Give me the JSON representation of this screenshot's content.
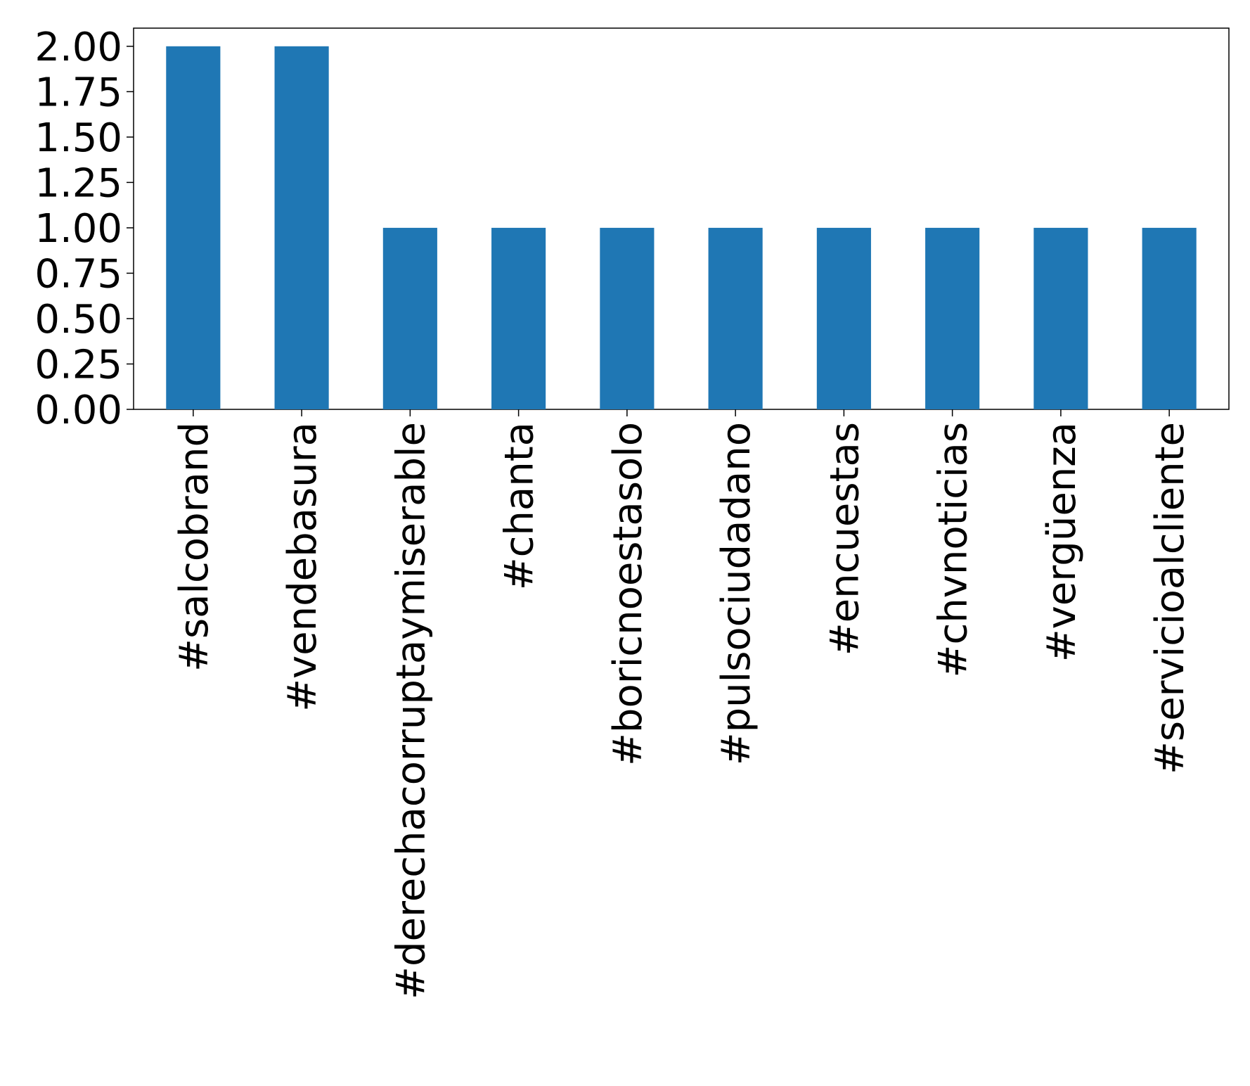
{
  "chart_data": {
    "type": "bar",
    "title": "",
    "xlabel": "",
    "ylabel": "",
    "categories": [
      "#salcobrand",
      "#vendebasura",
      "#derechacorruptaymiserable",
      "#chanta",
      "#boricnoestasolo",
      "#pulsociudadano",
      "#encuestas",
      "#chvnoticias",
      "#vergüenza",
      "#servicioalcliente"
    ],
    "values": [
      2,
      2,
      1,
      1,
      1,
      1,
      1,
      1,
      1,
      1
    ],
    "ylim": [
      0,
      2.1
    ],
    "yticks": [
      "0.00",
      "0.25",
      "0.50",
      "0.75",
      "1.00",
      "1.25",
      "1.50",
      "1.75",
      "2.00"
    ],
    "bar_color": "#1f77b4",
    "grid": false,
    "legend": "none"
  }
}
